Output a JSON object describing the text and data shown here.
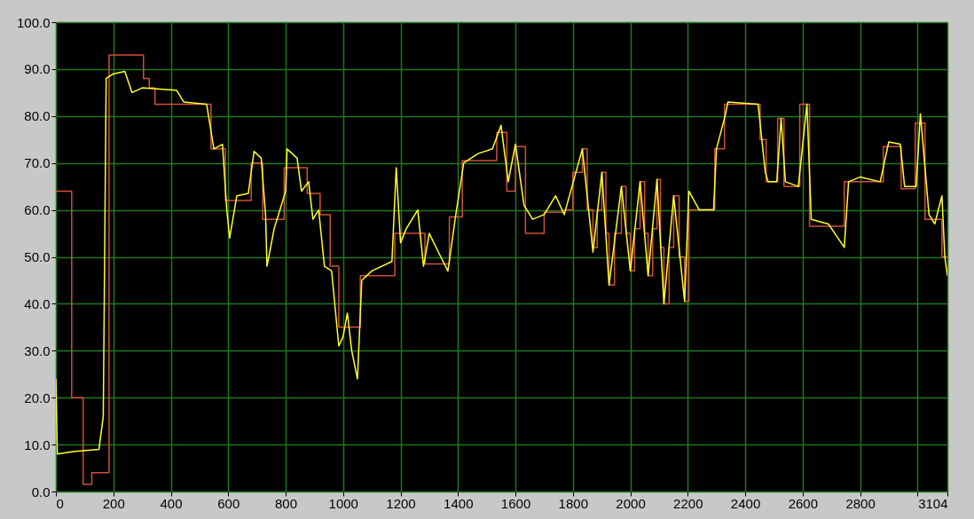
{
  "chart_data": {
    "type": "line",
    "grid": true,
    "xlim": [
      0,
      3104
    ],
    "xticks": [
      0,
      200,
      400,
      600,
      800,
      1000,
      1200,
      1400,
      1600,
      1800,
      2000,
      2200,
      2400,
      2600,
      2800,
      {
        "value": 3000,
        "label": null
      },
      3104
    ],
    "ylim": [
      0,
      100
    ],
    "yticks": [
      {
        "value": 0,
        "label": "0.0"
      },
      {
        "value": 10,
        "label": "10.0"
      },
      {
        "value": 20,
        "label": "20.0"
      },
      {
        "value": 30,
        "label": "30.0"
      },
      {
        "value": 40,
        "label": "40.0"
      },
      {
        "value": 50,
        "label": "50.0"
      },
      {
        "value": 60,
        "label": "60.0"
      },
      {
        "value": 70,
        "label": "70.0"
      },
      {
        "value": 80,
        "label": "80.0"
      },
      {
        "value": 90,
        "label": "90.0"
      },
      {
        "value": 100,
        "label": "100.0"
      }
    ],
    "series": [
      {
        "type": "step",
        "color": "#d0503a",
        "x": [
          0,
          55,
          95,
          125,
          185,
          305,
          325,
          345,
          540,
          590,
          680,
          720,
          795,
          875,
          920,
          955,
          985,
          1060,
          1180,
          1285,
          1370,
          1415,
          1535,
          1570,
          1600,
          1635,
          1700,
          1770,
          1800,
          1833,
          1850,
          1870,
          1885,
          1901,
          1915,
          1926,
          1945,
          1969,
          1985,
          2000,
          2015,
          2034,
          2050,
          2062,
          2078,
          2093,
          2105,
          2117,
          2135,
          2151,
          2170,
          2189,
          2204,
          2294,
          2328,
          2452,
          2473,
          2513,
          2535,
          2590,
          2624,
          2745,
          2881,
          2943,
          2992,
          3026,
          3085,
          3104
        ],
        "values": [
          64,
          20,
          1.5,
          4,
          93,
          88,
          86,
          82.5,
          73,
          62,
          70,
          58,
          69,
          63.5,
          59,
          48,
          35,
          46,
          55,
          48.5,
          58.5,
          70.5,
          76.5,
          64,
          73.5,
          55,
          59.5,
          60,
          68,
          73,
          60,
          52,
          60,
          68,
          55,
          44,
          55,
          65,
          55,
          47,
          56,
          66,
          55,
          46,
          56,
          66.5,
          52,
          40,
          52,
          63,
          50,
          40.5,
          60,
          73,
          82.5,
          75,
          66,
          79.5,
          65,
          82.5,
          56.5,
          66,
          73.5,
          64.5,
          78.5,
          58,
          50,
          50
        ]
      },
      {
        "type": "line",
        "color": "#ffff2a",
        "x": [
          0,
          5,
          60,
          150,
          165,
          175,
          200,
          240,
          265,
          300,
          420,
          445,
          525,
          550,
          580,
          595,
          605,
          630,
          670,
          690,
          715,
          730,
          735,
          760,
          800,
          805,
          840,
          855,
          880,
          895,
          915,
          935,
          960,
          985,
          1000,
          1015,
          1030,
          1050,
          1065,
          1100,
          1170,
          1185,
          1200,
          1220,
          1260,
          1280,
          1300,
          1340,
          1365,
          1390,
          1420,
          1470,
          1520,
          1550,
          1575,
          1600,
          1630,
          1660,
          1700,
          1740,
          1770,
          1833,
          1870,
          1901,
          1926,
          1969,
          2000,
          2034,
          2062,
          2093,
          2117,
          2151,
          2189,
          2204,
          2240,
          2290,
          2300,
          2330,
          2340,
          2445,
          2470,
          2480,
          2510,
          2525,
          2540,
          2585,
          2615,
          2630,
          2690,
          2745,
          2760,
          2800,
          2870,
          2900,
          2940,
          2955,
          2995,
          3010,
          3040,
          3060,
          3085,
          3095,
          3104
        ],
        "values": [
          24,
          8,
          8.5,
          9,
          16,
          88,
          89,
          89.5,
          85,
          86,
          85.5,
          83,
          82.5,
          73,
          74,
          60,
          54,
          63,
          63.5,
          72.5,
          71,
          59,
          48,
          56,
          64,
          73,
          71,
          64,
          66,
          58,
          60,
          48,
          47,
          31,
          33,
          38,
          30,
          24,
          45,
          47,
          49,
          69,
          53,
          56,
          60,
          48,
          55,
          50,
          47,
          58,
          70,
          72,
          73,
          78,
          66,
          74,
          61,
          58,
          59,
          63,
          59,
          73,
          51,
          68,
          44,
          65,
          47,
          66,
          46,
          66.5,
          40,
          63,
          40.5,
          64,
          60,
          60,
          73,
          80,
          83,
          82.5,
          68,
          66,
          66,
          79.5,
          66,
          65,
          82.5,
          58,
          57,
          52,
          66,
          67,
          66,
          74.5,
          74,
          65,
          65,
          80.5,
          59,
          57,
          63,
          50,
          46
        ]
      }
    ]
  }
}
